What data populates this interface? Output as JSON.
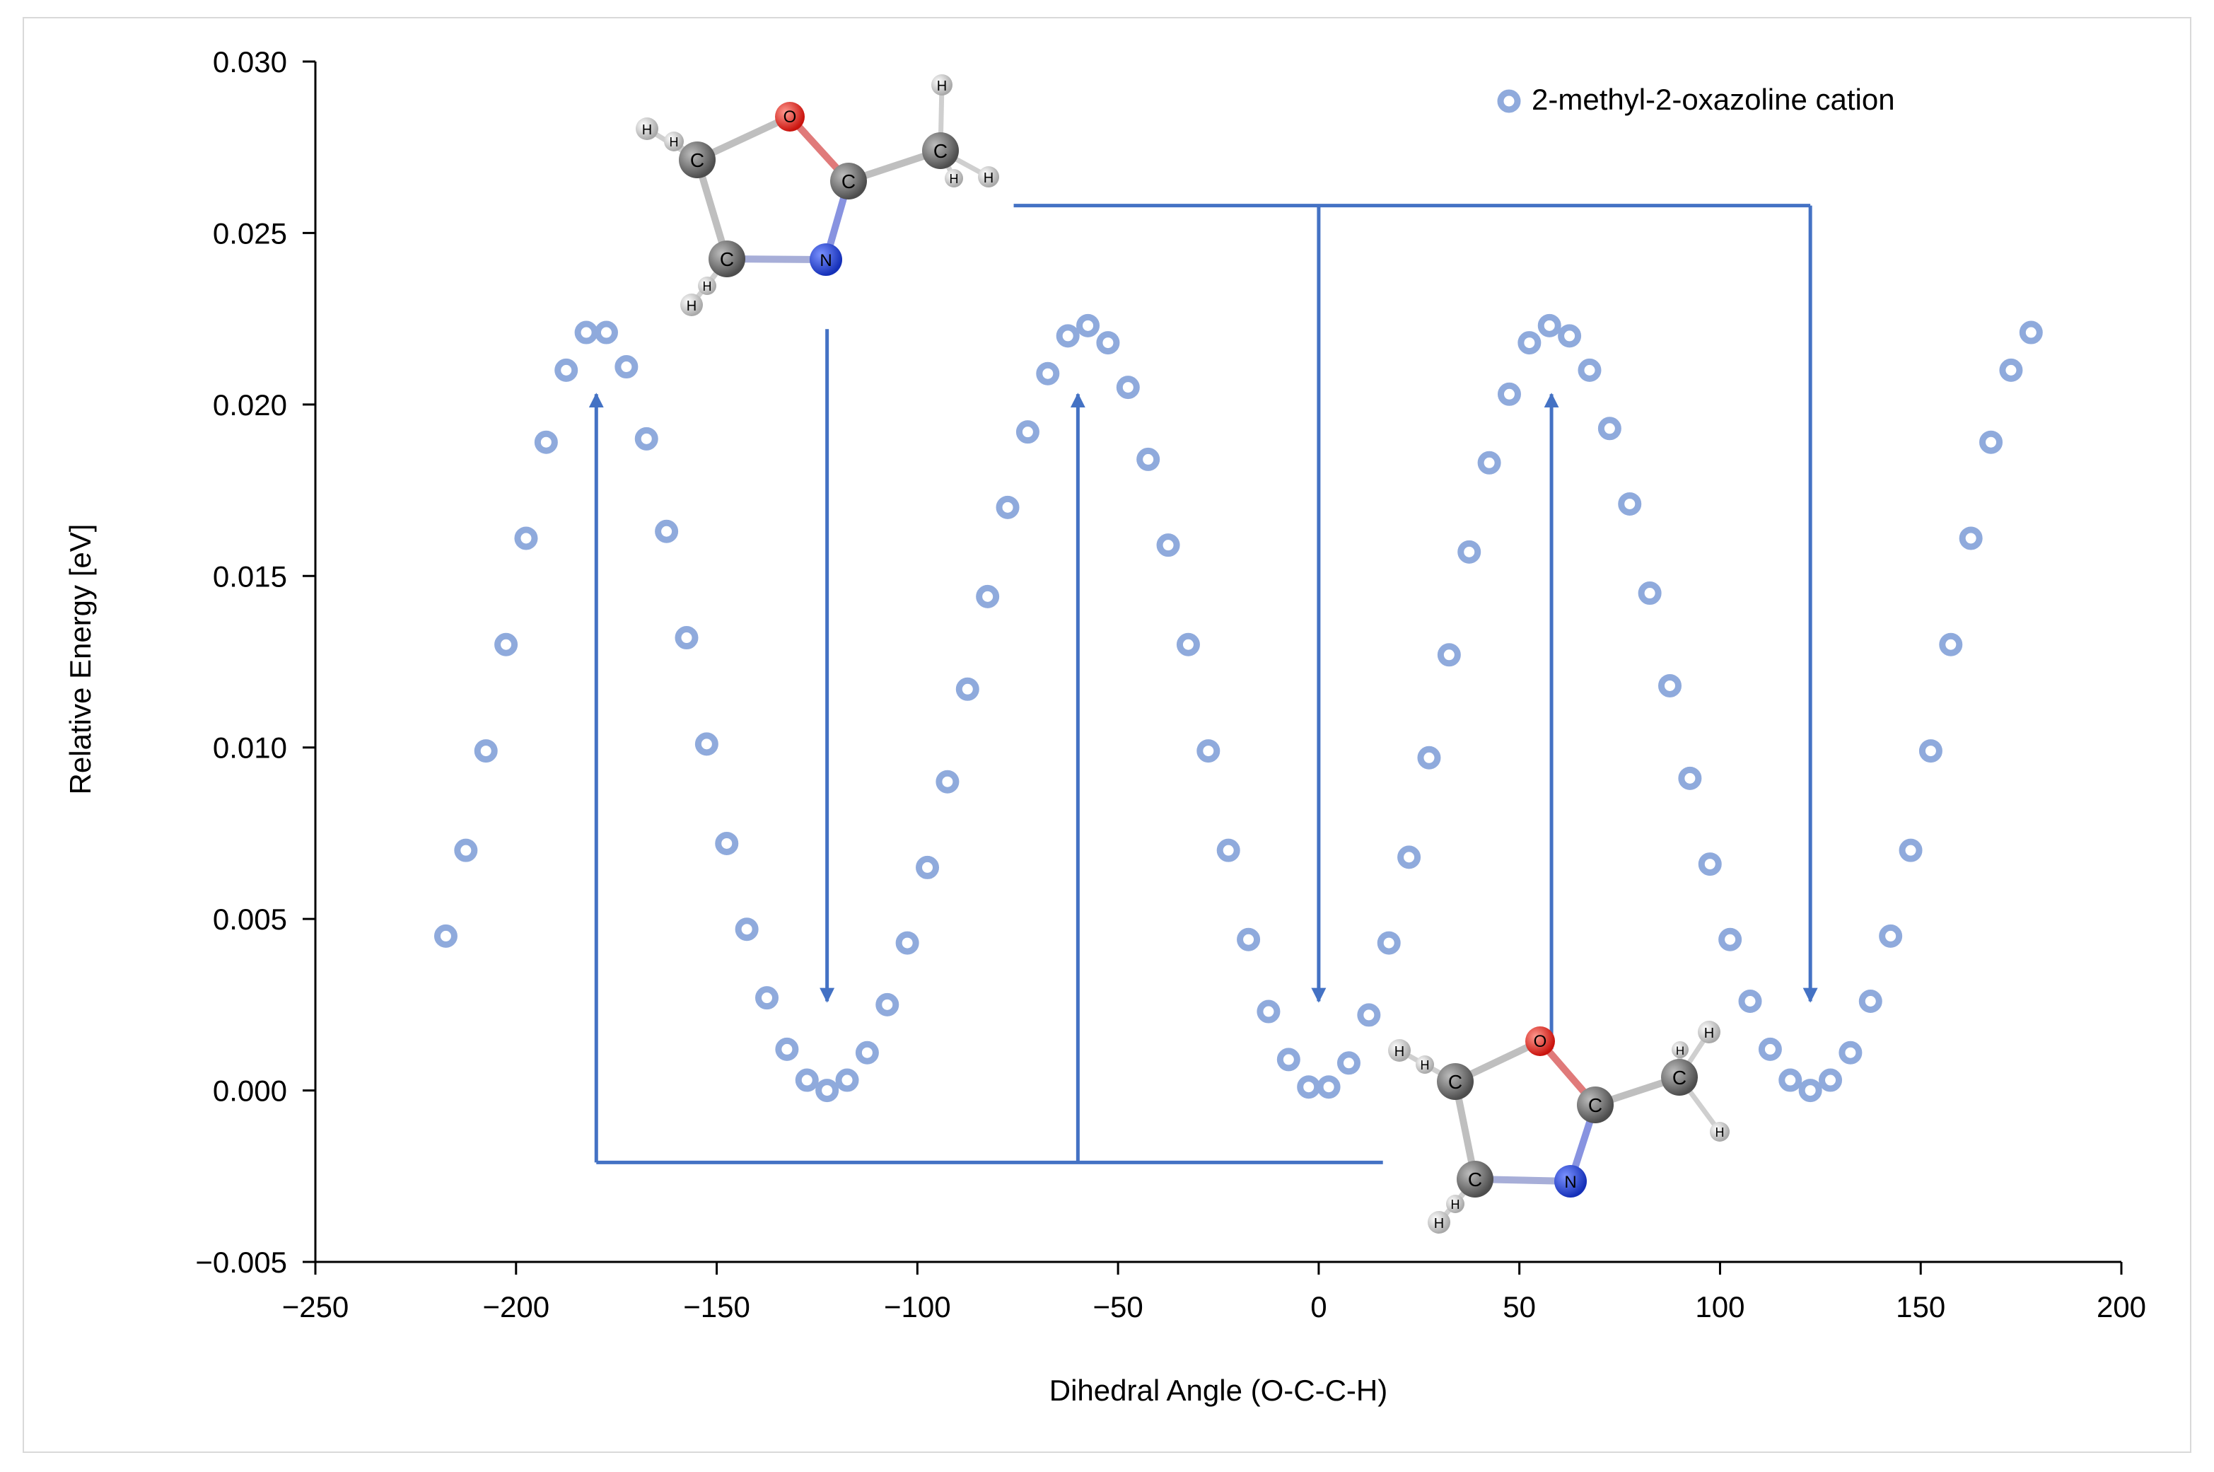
{
  "chart_data": {
    "type": "scatter",
    "title": "",
    "xlabel": "Dihedral Angle (O-C-C-H)",
    "ylabel": "Relative Energy [eV]",
    "xlim": [
      -250,
      200
    ],
    "ylim": [
      -0.005,
      0.03
    ],
    "x_ticks": [
      -250,
      -200,
      -150,
      -100,
      -50,
      0,
      50,
      100,
      150,
      200
    ],
    "x_tick_labels": [
      "−250",
      "−200",
      "−150",
      "−100",
      "−50",
      "0",
      "50",
      "100",
      "150",
      "200"
    ],
    "y_ticks": [
      -0.005,
      0,
      0.005,
      0.01,
      0.015,
      0.02,
      0.025,
      0.03
    ],
    "y_tick_labels": [
      "−0.005",
      "0.000",
      "0.005",
      "0.010",
      "0.015",
      "0.020",
      "0.025",
      "0.030"
    ],
    "grid": false,
    "legend_position": "top-right",
    "series": [
      {
        "name": "2-methyl-2-oxazoline cation",
        "color": "#8faadc",
        "marker": "open-circle",
        "x": [
          -217.5,
          -212.5,
          -207.5,
          -202.5,
          -197.5,
          -192.5,
          -187.5,
          -182.5,
          -177.5,
          -172.5,
          -167.5,
          -162.5,
          -157.5,
          -152.5,
          -147.5,
          -142.5,
          -137.5,
          -132.5,
          -127.5,
          -122.5,
          -117.5,
          -112.5,
          -107.5,
          -102.5,
          -97.5,
          -92.5,
          -87.5,
          -82.5,
          -77.5,
          -72.5,
          -67.5,
          -62.5,
          -57.5,
          -52.5,
          -47.5,
          -42.5,
          -37.5,
          -32.5,
          -27.5,
          -22.5,
          -17.5,
          -12.5,
          -7.5,
          -2.5,
          2.5,
          7.5,
          12.5,
          17.5,
          22.5,
          27.5,
          32.5,
          37.5,
          42.5,
          47.5,
          52.5,
          57.5,
          62.5,
          67.5,
          72.5,
          77.5,
          82.5,
          87.5,
          92.5,
          97.5,
          102.5,
          107.5,
          112.5,
          117.5,
          122.5,
          127.5,
          132.5,
          137.5,
          142.5,
          147.5,
          152.5,
          157.5,
          162.5,
          167.5,
          172.5,
          177.5
        ],
        "y": [
          0.0045,
          0.007,
          0.0099,
          0.013,
          0.0161,
          0.0189,
          0.021,
          0.0221,
          0.0221,
          0.0211,
          0.019,
          0.0163,
          0.0132,
          0.0101,
          0.0072,
          0.0047,
          0.0027,
          0.0012,
          0.0003,
          0.0,
          0.0003,
          0.0011,
          0.0025,
          0.0043,
          0.0065,
          0.009,
          0.0117,
          0.0144,
          0.017,
          0.0192,
          0.0209,
          0.022,
          0.0223,
          0.0218,
          0.0205,
          0.0184,
          0.0159,
          0.013,
          0.0099,
          0.007,
          0.0044,
          0.0023,
          0.0009,
          0.0001,
          0.0001,
          0.0008,
          0.0022,
          0.0043,
          0.0068,
          0.0097,
          0.0127,
          0.0157,
          0.0183,
          0.0203,
          0.0218,
          0.0223,
          0.022,
          0.021,
          0.0193,
          0.0171,
          0.0145,
          0.0118,
          0.0091,
          0.0066,
          0.0044,
          0.0026,
          0.0012,
          0.0003,
          0.0,
          0.0003,
          0.0011,
          0.0026,
          0.0045,
          0.007,
          0.0099,
          0.013,
          0.0161,
          0.0189,
          0.021,
          0.0221
        ]
      }
    ],
    "arrows": [
      {
        "x": -122.5,
        "from_y": 0.0222,
        "to_y": 0.0026
      },
      {
        "x": -180,
        "from_y": -0.0021,
        "to_y": 0.0203
      },
      {
        "x": -60,
        "from_y": -0.0021,
        "to_y": 0.0203
      },
      {
        "x": 0,
        "from_y": 0.0258,
        "to_y": 0.0026
      },
      {
        "x": 122.5,
        "from_y": 0.0258,
        "to_y": 0.0026
      },
      {
        "x": 58,
        "from_y": 0.0012,
        "to_y": 0.0203
      }
    ],
    "arrow_color": "#4472c4"
  },
  "molecule": {
    "labels": {
      "oxygen": "O",
      "nitrogen": "N",
      "carbon": "C",
      "hydrogen": "H"
    },
    "colors": {
      "oxygen": "#e8201a",
      "nitrogen": "#1f3fd6",
      "carbon": "#6e6e6e",
      "hydrogen": "#d8d8d8"
    }
  }
}
